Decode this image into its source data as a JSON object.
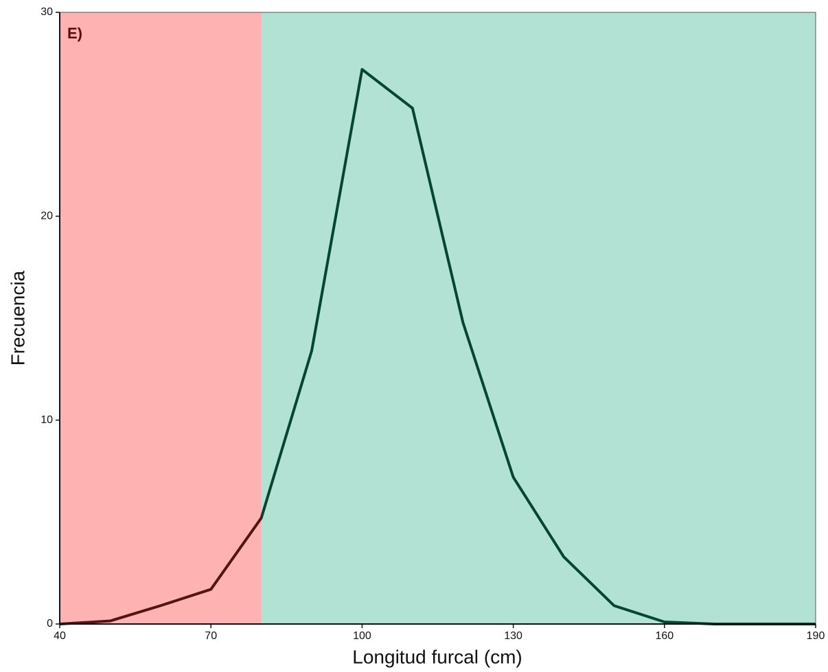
{
  "chart_data": {
    "type": "line",
    "panel_label": "E)",
    "x_label": "Longitud furcal (cm)",
    "y_label": "Frecuencia",
    "x": [
      40,
      50,
      60,
      70,
      80,
      90,
      100,
      110,
      120,
      130,
      140,
      150,
      160,
      170,
      180,
      190
    ],
    "values": [
      0,
      0.15,
      0.9,
      1.7,
      5.2,
      13.4,
      27.2,
      25.3,
      14.8,
      7.2,
      3.3,
      0.9,
      0.1,
      0,
      0,
      0
    ],
    "line_color": "#062018",
    "shaded_regions": [
      {
        "xlim": [
          40,
          80
        ],
        "color": "#ff0000"
      },
      {
        "xlim": [
          80,
          190
        ],
        "color": "#00a070"
      }
    ],
    "shade_opacity": 0.3,
    "xlim": [
      40,
      190
    ],
    "xticks": [
      40,
      70,
      100,
      130,
      160,
      190
    ],
    "ylim": [
      0,
      30
    ],
    "yticks": [
      0,
      10,
      20,
      30
    ]
  }
}
